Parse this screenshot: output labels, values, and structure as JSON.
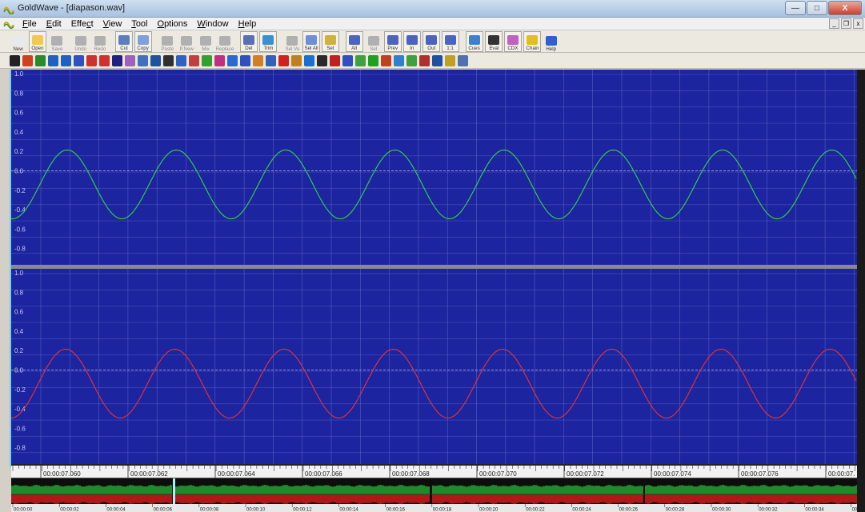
{
  "window": {
    "title": "GoldWave - [diapason.wav]",
    "buttons": {
      "minimize": "—",
      "maximize": "□",
      "close": "X"
    }
  },
  "menu": {
    "items": [
      {
        "u": "F",
        "rest": "ile"
      },
      {
        "u": "E",
        "rest": "dit"
      },
      {
        "u": "",
        "rest": "Effe",
        "u2": "c",
        "rest2": "t"
      },
      {
        "u": "V",
        "rest": "iew"
      },
      {
        "u": "T",
        "rest": "ool"
      },
      {
        "u": "O",
        "rest": "ptions"
      },
      {
        "u": "W",
        "rest": "indow"
      },
      {
        "u": "H",
        "rest": "elp"
      }
    ],
    "mdi": {
      "minimize": "_",
      "restore": "❐",
      "close": "x"
    }
  },
  "toolbar": {
    "buttons": [
      {
        "label": "New",
        "icon": "new-file-icon",
        "color": "#e8e8f0",
        "dim": false
      },
      {
        "label": "Open",
        "icon": "open-folder-icon",
        "color": "#f2c94c",
        "dim": false,
        "pressed": true
      },
      {
        "label": "Save",
        "icon": "save-icon",
        "color": "#b0b0b0",
        "dim": true
      },
      {
        "label": "Undo",
        "icon": "undo-icon",
        "color": "#b0b0b0",
        "dim": true
      },
      {
        "label": "Redo",
        "icon": "redo-icon",
        "color": "#b0b0b0",
        "dim": true
      },
      {
        "label": "Cut",
        "icon": "scissors-icon",
        "color": "#5a7fbf",
        "dim": false,
        "pressed": true
      },
      {
        "label": "Copy",
        "icon": "copy-icon",
        "color": "#7fa0d8",
        "dim": false,
        "pressed": true
      },
      {
        "label": "Paste",
        "icon": "paste-icon",
        "color": "#b0b0b0",
        "dim": true
      },
      {
        "label": "P.New",
        "icon": "paste-new-icon",
        "color": "#b0b0b0",
        "dim": true
      },
      {
        "label": "Mix",
        "icon": "mix-icon",
        "color": "#b0b0b0",
        "dim": true
      },
      {
        "label": "Replace",
        "icon": "replace-icon",
        "color": "#b0b0b0",
        "dim": true
      },
      {
        "label": "Del",
        "icon": "delete-icon",
        "color": "#5b6fb5",
        "dim": false,
        "pressed": true
      },
      {
        "label": "Trim",
        "icon": "trim-icon",
        "color": "#3b8ed0",
        "dim": false,
        "pressed": true
      },
      {
        "label": "Sel Vu",
        "icon": "select-view-icon",
        "color": "#b0b0b0",
        "dim": true
      },
      {
        "label": "Sel All",
        "icon": "select-all-icon",
        "color": "#6d8fd6",
        "dim": false,
        "pressed": true
      },
      {
        "label": "Set",
        "icon": "set-icon",
        "color": "#d0b040",
        "dim": false,
        "pressed": true
      },
      {
        "label": "All",
        "icon": "zoom-all-icon",
        "color": "#4a64c0",
        "dim": false,
        "pressed": true
      },
      {
        "label": "Sel",
        "icon": "zoom-selection-icon",
        "color": "#b0b0b0",
        "dim": true
      },
      {
        "label": "Prev",
        "icon": "zoom-previous-icon",
        "color": "#4a64c0",
        "dim": false,
        "pressed": true
      },
      {
        "label": "In",
        "icon": "zoom-in-icon",
        "color": "#4a64c0",
        "dim": false,
        "pressed": true
      },
      {
        "label": "Out",
        "icon": "zoom-out-icon",
        "color": "#4a64c0",
        "dim": false,
        "pressed": true
      },
      {
        "label": "1:1",
        "icon": "zoom-1to1-icon",
        "color": "#4a64c0",
        "dim": false,
        "pressed": true
      },
      {
        "label": "Cues",
        "icon": "cues-icon",
        "color": "#3f7fd0",
        "dim": false,
        "pressed": true
      },
      {
        "label": "Eval",
        "icon": "eval-icon",
        "color": "#333333",
        "dim": false,
        "pressed": true
      },
      {
        "label": "CDX",
        "icon": "cd-extract-icon",
        "color": "#c060c0",
        "dim": false,
        "pressed": true
      },
      {
        "label": "Chain",
        "icon": "chain-icon",
        "color": "#e0c020",
        "dim": false,
        "pressed": true
      },
      {
        "label": "Help",
        "icon": "help-icon",
        "color": "#3060d0",
        "dim": false
      }
    ]
  },
  "effects_toolbar": {
    "colors": [
      "#222222",
      "#d04020",
      "#2a8a2a",
      "#2060c0",
      "#2060c0",
      "#3050c0",
      "#d03030",
      "#d03030",
      "#202080",
      "#a060c0",
      "#4070c0",
      "#2050a0",
      "#303030",
      "#3060c0",
      "#c04040",
      "#30a030",
      "#c03080",
      "#2a6ad0",
      "#3050c0",
      "#d08020",
      "#3060c0",
      "#d02020",
      "#c08020",
      "#1a70d0",
      "#2a2a2a",
      "#c02020",
      "#3050c0",
      "#40a040",
      "#20a020",
      "#c04020",
      "#3080d0",
      "#40a040",
      "#b03030",
      "#2050a0",
      "#c0a020",
      "#5070b0"
    ]
  },
  "waveform": {
    "y_ticks": [
      "1.0",
      "0.8",
      "0.6",
      "0.4",
      "0.2",
      "0.0",
      "-0.2",
      "-0.4",
      "-0.6",
      "-0.8"
    ],
    "colors": {
      "background": "#1c24a0",
      "grid": "#6e77c8",
      "left_channel": "#2ecb4a",
      "right_channel": "#e0303a",
      "baseline": "#aab2e8"
    },
    "time_labels": [
      "00:00:07.060",
      "00:00:07.062",
      "00:00:07.064",
      "00:00:07.066",
      "00:00:07.068",
      "00:00:07.070",
      "00:00:07.072",
      "00:00:07.074",
      "00:00:07.076",
      "00:00:07."
    ]
  },
  "overview": {
    "time_labels": [
      "00:00:00",
      "00:00:02",
      "00:00:04",
      "00:00:06",
      "00:00:08",
      "00:00:10",
      "00:00:12",
      "00:00:14",
      "00:00:16",
      "00:00:18",
      "00:00:20",
      "00:00:22",
      "00:00:24",
      "00:00:26",
      "00:00:28",
      "00:00:30",
      "00:00:32",
      "00:00:34",
      "00:00:36"
    ],
    "colors": {
      "upper": "#1f8a2a",
      "lower": "#b01818",
      "marker": "#a8f0ff"
    }
  }
}
